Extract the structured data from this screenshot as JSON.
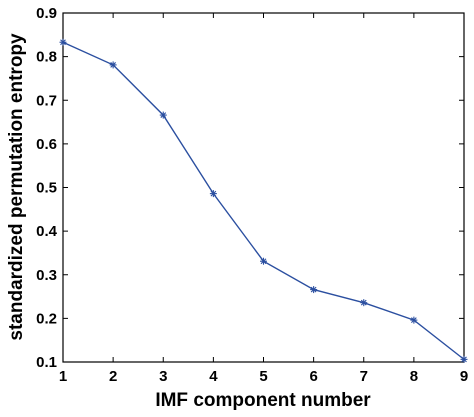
{
  "chart_data": {
    "type": "line",
    "title": "",
    "xlabel": "IMF component number",
    "ylabel": "standardized permutation entropy",
    "xlim": [
      1,
      9
    ],
    "ylim": [
      0.1,
      0.9
    ],
    "xticks": [
      1,
      2,
      3,
      4,
      5,
      6,
      7,
      8,
      9
    ],
    "yticks": [
      0.1,
      0.2,
      0.3,
      0.4,
      0.5,
      0.6,
      0.7,
      0.8,
      0.9
    ],
    "grid": false,
    "legend": "none",
    "series": [
      {
        "color": "#2b4fa0",
        "marker": "asterisk",
        "x": [
          1,
          2,
          3,
          4,
          5,
          6,
          7,
          8,
          9
        ],
        "y": [
          0.833,
          0.781,
          0.666,
          0.486,
          0.331,
          0.266,
          0.236,
          0.196,
          0.106
        ]
      }
    ]
  }
}
